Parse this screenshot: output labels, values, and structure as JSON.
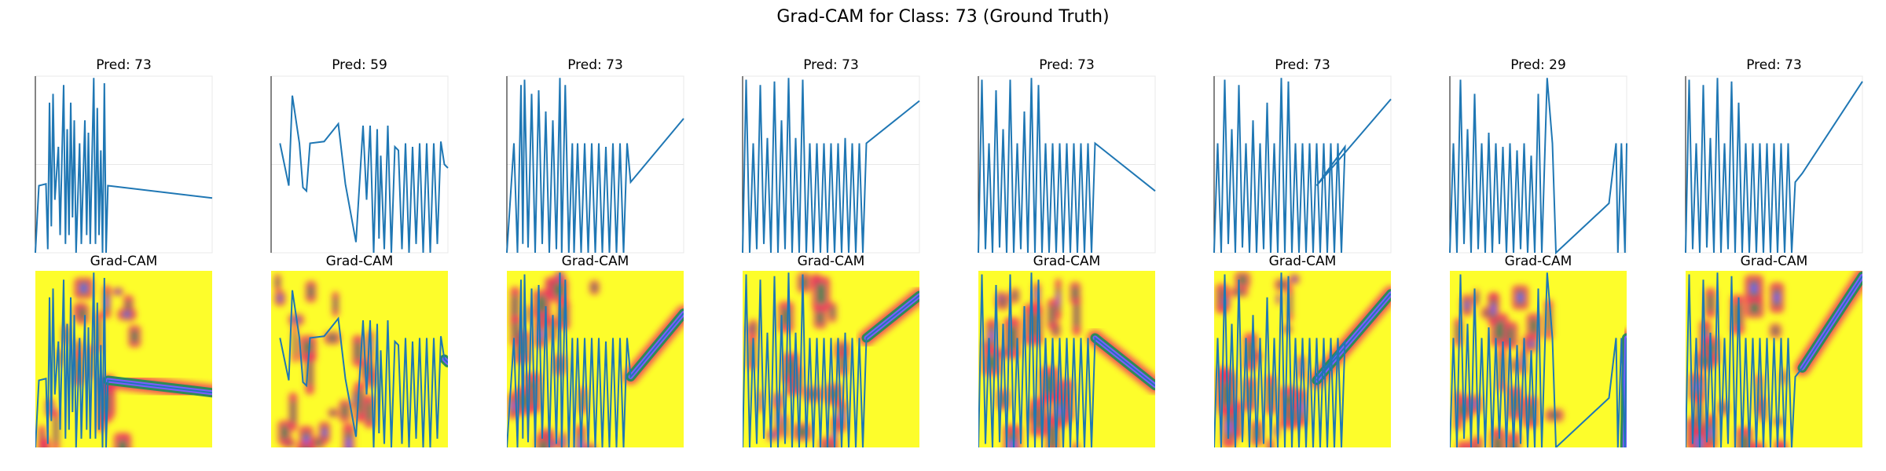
{
  "figure": {
    "title": "Grad-CAM for Class: 73 (Ground Truth)",
    "heatmap_title": "Grad-CAM"
  },
  "colors": {
    "line": "#1f77b4",
    "heat_background": "#fdfd2b",
    "heat_hot": "#f0335f",
    "heat_mid": "#2e8b57",
    "heat_cool": "#7b5cff",
    "grid": "#e8e8e8"
  },
  "chart_data": {
    "type": "line",
    "series_count": 8,
    "panels": [
      {
        "pred_label": "Pred: 73",
        "series": [
          [
            0,
            0
          ],
          [
            0.02,
            0.38
          ],
          [
            0.06,
            0.39
          ],
          [
            0.07,
            0.02
          ],
          [
            0.08,
            0.85
          ],
          [
            0.09,
            0.15
          ],
          [
            0.1,
            0.9
          ],
          [
            0.11,
            0.3
          ],
          [
            0.13,
            0.6
          ],
          [
            0.14,
            0.1
          ],
          [
            0.16,
            0.95
          ],
          [
            0.17,
            0.05
          ],
          [
            0.18,
            0.7
          ],
          [
            0.19,
            0.1
          ],
          [
            0.2,
            0.85
          ],
          [
            0.21,
            0.2
          ],
          [
            0.22,
            0.75
          ],
          [
            0.23,
            0.0
          ],
          [
            0.25,
            0.62
          ],
          [
            0.26,
            0.05
          ],
          [
            0.28,
            0.75
          ],
          [
            0.29,
            0.1
          ],
          [
            0.3,
            0.68
          ],
          [
            0.31,
            0.05
          ],
          [
            0.33,
            0.99
          ],
          [
            0.34,
            0.05
          ],
          [
            0.35,
            0.82
          ],
          [
            0.36,
            0.1
          ],
          [
            0.37,
            0.58
          ],
          [
            0.38,
            0.0
          ],
          [
            0.39,
            0.96
          ],
          [
            0.4,
            0.0
          ],
          [
            0.41,
            0.38
          ],
          [
            1.0,
            0.31
          ]
        ]
      },
      {
        "pred_label": "Pred: 59",
        "series": [
          [
            0.05,
            0.62
          ],
          [
            0.1,
            0.38
          ],
          [
            0.12,
            0.89
          ],
          [
            0.16,
            0.62
          ],
          [
            0.18,
            0.37
          ],
          [
            0.2,
            0.35
          ],
          [
            0.22,
            0.62
          ],
          [
            0.3,
            0.63
          ],
          [
            0.38,
            0.73
          ],
          [
            0.42,
            0.39
          ],
          [
            0.48,
            0.06
          ],
          [
            0.52,
            0.72
          ],
          [
            0.54,
            0.3
          ],
          [
            0.56,
            0.72
          ],
          [
            0.58,
            0.0
          ],
          [
            0.6,
            0.7
          ],
          [
            0.61,
            0.08
          ],
          [
            0.62,
            0.55
          ],
          [
            0.64,
            0.02
          ],
          [
            0.66,
            0.72
          ],
          [
            0.68,
            0.0
          ],
          [
            0.7,
            0.6
          ],
          [
            0.72,
            0.58
          ],
          [
            0.74,
            0.02
          ],
          [
            0.76,
            0.62
          ],
          [
            0.78,
            0.0
          ],
          [
            0.8,
            0.6
          ],
          [
            0.82,
            0.05
          ],
          [
            0.84,
            0.62
          ],
          [
            0.86,
            0.0
          ],
          [
            0.88,
            0.62
          ],
          [
            0.9,
            0.0
          ],
          [
            0.92,
            0.62
          ],
          [
            0.94,
            0.05
          ],
          [
            0.96,
            0.63
          ],
          [
            0.98,
            0.5
          ],
          [
            1.0,
            0.48
          ]
        ]
      },
      {
        "pred_label": "Pred: 73",
        "series": [
          [
            0,
            0
          ],
          [
            0.04,
            0.62
          ],
          [
            0.06,
            0.0
          ],
          [
            0.08,
            0.95
          ],
          [
            0.09,
            0.05
          ],
          [
            0.1,
            0.98
          ],
          [
            0.12,
            0.03
          ],
          [
            0.14,
            0.9
          ],
          [
            0.16,
            0.0
          ],
          [
            0.18,
            0.92
          ],
          [
            0.2,
            0.05
          ],
          [
            0.22,
            0.8
          ],
          [
            0.24,
            0.0
          ],
          [
            0.26,
            0.75
          ],
          [
            0.28,
            0.02
          ],
          [
            0.3,
            0.99
          ],
          [
            0.31,
            0.0
          ],
          [
            0.33,
            0.95
          ],
          [
            0.35,
            0.0
          ],
          [
            0.37,
            0.62
          ],
          [
            0.38,
            0.0
          ],
          [
            0.4,
            0.62
          ],
          [
            0.42,
            0.0
          ],
          [
            0.44,
            0.62
          ],
          [
            0.46,
            0.0
          ],
          [
            0.48,
            0.62
          ],
          [
            0.5,
            0.0
          ],
          [
            0.52,
            0.62
          ],
          [
            0.54,
            0.0
          ],
          [
            0.56,
            0.6
          ],
          [
            0.58,
            0.0
          ],
          [
            0.6,
            0.62
          ],
          [
            0.62,
            0.0
          ],
          [
            0.64,
            0.62
          ],
          [
            0.66,
            0.0
          ],
          [
            0.68,
            0.62
          ],
          [
            0.7,
            0.4
          ],
          [
            1.0,
            0.76
          ]
        ]
      },
      {
        "pred_label": "Pred: 73",
        "series": [
          [
            0,
            0
          ],
          [
            0.02,
            0.98
          ],
          [
            0.04,
            0.0
          ],
          [
            0.06,
            0.62
          ],
          [
            0.08,
            0.02
          ],
          [
            0.1,
            0.95
          ],
          [
            0.12,
            0.05
          ],
          [
            0.14,
            0.65
          ],
          [
            0.16,
            0.0
          ],
          [
            0.18,
            0.97
          ],
          [
            0.2,
            0.0
          ],
          [
            0.22,
            0.75
          ],
          [
            0.24,
            0.02
          ],
          [
            0.26,
            0.99
          ],
          [
            0.28,
            0.0
          ],
          [
            0.3,
            0.65
          ],
          [
            0.32,
            0.0
          ],
          [
            0.34,
            0.98
          ],
          [
            0.36,
            0.0
          ],
          [
            0.38,
            0.62
          ],
          [
            0.4,
            0.0
          ],
          [
            0.42,
            0.62
          ],
          [
            0.44,
            0.0
          ],
          [
            0.46,
            0.62
          ],
          [
            0.48,
            0.0
          ],
          [
            0.5,
            0.62
          ],
          [
            0.52,
            0.0
          ],
          [
            0.54,
            0.62
          ],
          [
            0.56,
            0.0
          ],
          [
            0.58,
            0.65
          ],
          [
            0.6,
            0.0
          ],
          [
            0.62,
            0.62
          ],
          [
            0.64,
            0.0
          ],
          [
            0.66,
            0.62
          ],
          [
            0.68,
            0.0
          ],
          [
            0.7,
            0.62
          ],
          [
            1.0,
            0.86
          ]
        ]
      },
      {
        "pred_label": "Pred: 73",
        "series": [
          [
            0,
            0
          ],
          [
            0.02,
            0.98
          ],
          [
            0.04,
            0.02
          ],
          [
            0.06,
            0.62
          ],
          [
            0.08,
            0.0
          ],
          [
            0.1,
            0.92
          ],
          [
            0.12,
            0.03
          ],
          [
            0.14,
            0.7
          ],
          [
            0.16,
            0.0
          ],
          [
            0.18,
            0.98
          ],
          [
            0.2,
            0.0
          ],
          [
            0.22,
            0.62
          ],
          [
            0.24,
            0.02
          ],
          [
            0.26,
            0.8
          ],
          [
            0.28,
            0.0
          ],
          [
            0.3,
            0.99
          ],
          [
            0.32,
            0.0
          ],
          [
            0.34,
            0.95
          ],
          [
            0.36,
            0.0
          ],
          [
            0.38,
            0.62
          ],
          [
            0.4,
            0.0
          ],
          [
            0.42,
            0.62
          ],
          [
            0.44,
            0.0
          ],
          [
            0.46,
            0.62
          ],
          [
            0.48,
            0.0
          ],
          [
            0.5,
            0.62
          ],
          [
            0.52,
            0.0
          ],
          [
            0.54,
            0.62
          ],
          [
            0.56,
            0.0
          ],
          [
            0.58,
            0.62
          ],
          [
            0.6,
            0.0
          ],
          [
            0.62,
            0.62
          ],
          [
            0.64,
            0.0
          ],
          [
            0.66,
            0.62
          ],
          [
            1.0,
            0.35
          ]
        ]
      },
      {
        "pred_label": "Pred: 73",
        "series": [
          [
            0,
            0
          ],
          [
            0.02,
            0.62
          ],
          [
            0.04,
            0.0
          ],
          [
            0.06,
            0.98
          ],
          [
            0.08,
            0.05
          ],
          [
            0.1,
            0.7
          ],
          [
            0.12,
            0.0
          ],
          [
            0.14,
            0.95
          ],
          [
            0.16,
            0.03
          ],
          [
            0.18,
            0.62
          ],
          [
            0.2,
            0.0
          ],
          [
            0.22,
            0.75
          ],
          [
            0.24,
            0.0
          ],
          [
            0.26,
            0.62
          ],
          [
            0.28,
            0.02
          ],
          [
            0.3,
            0.85
          ],
          [
            0.32,
            0.0
          ],
          [
            0.34,
            0.62
          ],
          [
            0.36,
            0.0
          ],
          [
            0.38,
            0.99
          ],
          [
            0.4,
            0.0
          ],
          [
            0.42,
            0.97
          ],
          [
            0.44,
            0.0
          ],
          [
            0.46,
            0.62
          ],
          [
            0.48,
            0.0
          ],
          [
            0.5,
            0.62
          ],
          [
            0.52,
            0.0
          ],
          [
            0.54,
            0.62
          ],
          [
            0.56,
            0.0
          ],
          [
            0.58,
            0.62
          ],
          [
            0.6,
            0.0
          ],
          [
            0.62,
            0.62
          ],
          [
            0.64,
            0.0
          ],
          [
            0.66,
            0.62
          ],
          [
            0.68,
            0.0
          ],
          [
            0.7,
            0.62
          ],
          [
            0.72,
            0.0
          ],
          [
            0.74,
            0.6
          ],
          [
            0.58,
            0.38
          ],
          [
            1.0,
            0.87
          ]
        ]
      },
      {
        "pred_label": "Pred: 29",
        "series": [
          [
            0,
            0
          ],
          [
            0.02,
            0.62
          ],
          [
            0.04,
            0.0
          ],
          [
            0.06,
            0.98
          ],
          [
            0.08,
            0.05
          ],
          [
            0.1,
            0.7
          ],
          [
            0.12,
            0.0
          ],
          [
            0.14,
            0.9
          ],
          [
            0.16,
            0.02
          ],
          [
            0.18,
            0.62
          ],
          [
            0.2,
            0.0
          ],
          [
            0.22,
            0.68
          ],
          [
            0.24,
            0.0
          ],
          [
            0.26,
            0.62
          ],
          [
            0.28,
            0.05
          ],
          [
            0.3,
            0.6
          ],
          [
            0.32,
            0.0
          ],
          [
            0.34,
            0.62
          ],
          [
            0.36,
            0.0
          ],
          [
            0.38,
            0.58
          ],
          [
            0.4,
            0.02
          ],
          [
            0.42,
            0.62
          ],
          [
            0.44,
            0.0
          ],
          [
            0.46,
            0.55
          ],
          [
            0.48,
            0.0
          ],
          [
            0.5,
            0.9
          ],
          [
            0.52,
            0.0
          ],
          [
            0.55,
            0.99
          ],
          [
            0.58,
            0.62
          ],
          [
            0.6,
            0.0
          ],
          [
            0.9,
            0.28
          ],
          [
            0.94,
            0.62
          ],
          [
            0.95,
            0.0
          ],
          [
            0.97,
            0.62
          ],
          [
            0.99,
            0.0
          ],
          [
            1.0,
            0.62
          ]
        ]
      },
      {
        "pred_label": "Pred: 73",
        "series": [
          [
            0,
            0
          ],
          [
            0.02,
            0.98
          ],
          [
            0.04,
            0.02
          ],
          [
            0.06,
            0.62
          ],
          [
            0.08,
            0.0
          ],
          [
            0.1,
            0.95
          ],
          [
            0.12,
            0.03
          ],
          [
            0.14,
            0.65
          ],
          [
            0.16,
            0.0
          ],
          [
            0.18,
            0.99
          ],
          [
            0.2,
            0.0
          ],
          [
            0.22,
            0.62
          ],
          [
            0.24,
            0.02
          ],
          [
            0.26,
            0.97
          ],
          [
            0.28,
            0.0
          ],
          [
            0.3,
            0.85
          ],
          [
            0.32,
            0.0
          ],
          [
            0.34,
            0.62
          ],
          [
            0.36,
            0.0
          ],
          [
            0.38,
            0.62
          ],
          [
            0.4,
            0.0
          ],
          [
            0.42,
            0.62
          ],
          [
            0.44,
            0.0
          ],
          [
            0.46,
            0.62
          ],
          [
            0.48,
            0.0
          ],
          [
            0.5,
            0.62
          ],
          [
            0.52,
            0.0
          ],
          [
            0.54,
            0.62
          ],
          [
            0.56,
            0.0
          ],
          [
            0.58,
            0.62
          ],
          [
            0.6,
            0.0
          ],
          [
            0.62,
            0.4
          ],
          [
            0.66,
            0.45
          ],
          [
            1.0,
            0.97
          ]
        ]
      }
    ]
  }
}
